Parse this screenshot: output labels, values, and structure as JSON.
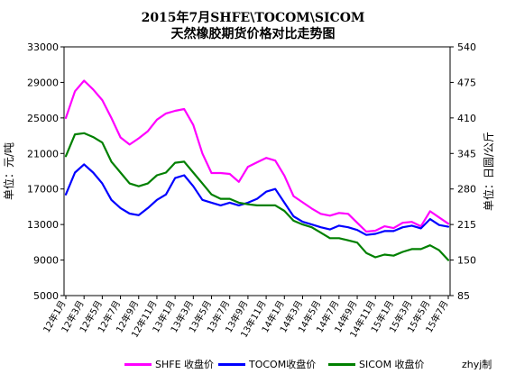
{
  "chart_data": {
    "type": "line",
    "title_line1": "2015年7月SHFE\\TOCOM\\SICOM",
    "title_line2": "天然橡胶期货价格对比走势图",
    "ylabel_left": "单位：元/吨",
    "ylabel_right": "单位：日圆/公斤",
    "credit": "zhyj制",
    "ylim_left": [
      5000,
      33000
    ],
    "ylim_right": [
      85,
      540
    ],
    "yticks_left": [
      5000,
      9000,
      13000,
      17000,
      21000,
      25000,
      29000,
      33000
    ],
    "yticks_right": [
      85,
      150,
      215,
      280,
      345,
      410,
      475,
      540
    ],
    "x_tick_labels": [
      "12年1月",
      "12年3月",
      "12年5月",
      "12年7月",
      "12年9月",
      "12年11月",
      "13年1月",
      "13年3月",
      "13年5月",
      "13年7月",
      "13年9月",
      "13年11月",
      "14年1月",
      "14年3月",
      "14年5月",
      "14年7月",
      "14年9月",
      "14年11月",
      "15年1月",
      "15年3月",
      "15年5月",
      "15年7月"
    ],
    "months": [
      "2012-01",
      "2012-02",
      "2012-03",
      "2012-04",
      "2012-05",
      "2012-06",
      "2012-07",
      "2012-08",
      "2012-09",
      "2012-10",
      "2012-11",
      "2012-12",
      "2013-01",
      "2013-02",
      "2013-03",
      "2013-04",
      "2013-05",
      "2013-06",
      "2013-07",
      "2013-08",
      "2013-09",
      "2013-10",
      "2013-11",
      "2013-12",
      "2014-01",
      "2014-02",
      "2014-03",
      "2014-04",
      "2014-05",
      "2014-06",
      "2014-07",
      "2014-08",
      "2014-09",
      "2014-10",
      "2014-11",
      "2014-12",
      "2015-01",
      "2015-02",
      "2015-03",
      "2015-04",
      "2015-05",
      "2015-06",
      "2015-07"
    ],
    "grid": false,
    "legend_position": "bottom",
    "series": [
      {
        "name": "SHFE 收盘价",
        "axis": "left",
        "color": "#ff00ff",
        "values": [
          25000,
          28000,
          29200,
          28200,
          27000,
          25000,
          22800,
          22000,
          22700,
          23500,
          24800,
          25500,
          25800,
          26000,
          24200,
          21000,
          18800,
          18800,
          18700,
          17800,
          19500,
          20000,
          20500,
          20200,
          18500,
          16200,
          15500,
          14800,
          14200,
          14000,
          14300,
          14200,
          13200,
          12200,
          12300,
          12800,
          12600,
          13200,
          13300,
          12800,
          14500,
          13800,
          13100
        ]
      },
      {
        "name": "TOCOM收盘价",
        "axis": "right",
        "color": "#0000ff",
        "values": [
          270,
          310,
          325,
          310,
          290,
          260,
          245,
          235,
          232,
          245,
          260,
          270,
          300,
          305,
          285,
          260,
          255,
          250,
          255,
          250,
          255,
          262,
          275,
          280,
          255,
          230,
          220,
          215,
          210,
          206,
          213,
          210,
          205,
          196,
          198,
          203,
          203,
          210,
          213,
          208,
          225,
          214,
          211
        ]
      },
      {
        "name": "SICOM 收盘价",
        "axis": "right",
        "color": "#008000",
        "values": [
          340,
          380,
          382,
          375,
          365,
          330,
          310,
          290,
          285,
          290,
          305,
          310,
          328,
          330,
          310,
          290,
          270,
          262,
          262,
          255,
          252,
          250,
          250,
          250,
          240,
          222,
          215,
          210,
          200,
          190,
          190,
          186,
          182,
          163,
          155,
          160,
          158,
          165,
          170,
          170,
          177,
          168,
          150
        ]
      }
    ]
  }
}
